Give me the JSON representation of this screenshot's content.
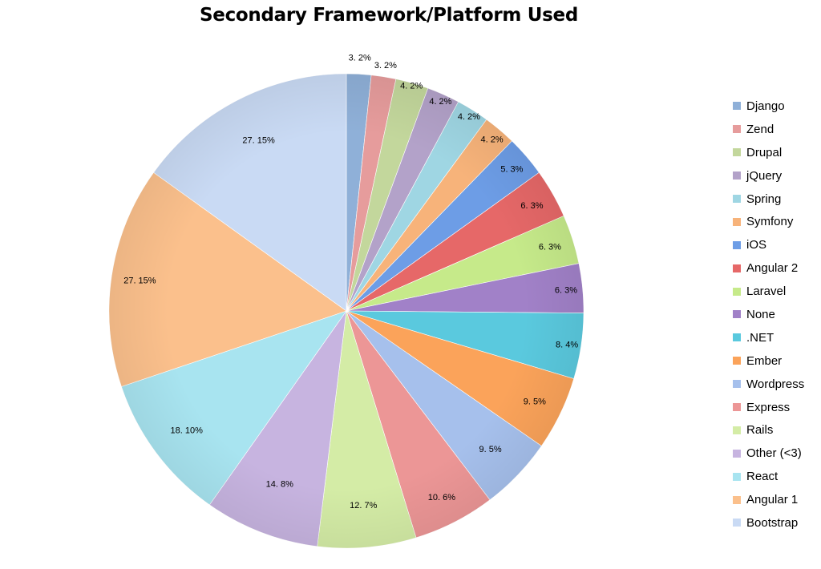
{
  "title": "Secondary Framework/Platform Used",
  "chart_data": {
    "type": "pie",
    "title": "Secondary Framework/Platform Used",
    "legend_position": "right",
    "slices": [
      {
        "name": "Django",
        "label": "3. 2%",
        "count": 3,
        "percent": 2,
        "color": "#8fb0d8"
      },
      {
        "name": "Zend",
        "label": "3. 2%",
        "count": 3,
        "percent": 2,
        "color": "#e69c9c"
      },
      {
        "name": "Drupal",
        "label": "4. 2%",
        "count": 4,
        "percent": 2,
        "color": "#c3d79c"
      },
      {
        "name": "jQuery",
        "label": "4. 2%",
        "count": 4,
        "percent": 2,
        "color": "#b3a2c9"
      },
      {
        "name": "Spring",
        "label": "4. 2%",
        "count": 4,
        "percent": 2,
        "color": "#9fd6e3"
      },
      {
        "name": "Symfony",
        "label": "4. 2%",
        "count": 4,
        "percent": 2,
        "color": "#f7b37a"
      },
      {
        "name": "iOS",
        "label": "5. 3%",
        "count": 5,
        "percent": 3,
        "color": "#6d9de6"
      },
      {
        "name": "Angular 2",
        "label": "6. 3%",
        "count": 6,
        "percent": 3,
        "color": "#e66868"
      },
      {
        "name": "Laravel",
        "label": "6. 3%",
        "count": 6,
        "percent": 3,
        "color": "#c6ea8a"
      },
      {
        "name": "None",
        "label": "6. 3%",
        "count": 6,
        "percent": 3,
        "color": "#a181c8"
      },
      {
        "name": ".NET",
        "label": "8. 4%",
        "count": 8,
        "percent": 4,
        "color": "#5ac9de"
      },
      {
        "name": "Ember",
        "label": "9. 5%",
        "count": 9,
        "percent": 5,
        "color": "#fba35a"
      },
      {
        "name": "Wordpress",
        "label": "9. 5%",
        "count": 9,
        "percent": 5,
        "color": "#a6c0ec"
      },
      {
        "name": "Express",
        "label": "10. 6%",
        "count": 10,
        "percent": 6,
        "color": "#ec9696"
      },
      {
        "name": "Rails",
        "label": "12. 7%",
        "count": 12,
        "percent": 7,
        "color": "#d4eca6"
      },
      {
        "name": "Other (<3)",
        "label": "14. 8%",
        "count": 14,
        "percent": 8,
        "color": "#c7b4e0"
      },
      {
        "name": "React",
        "label": "18. 10%",
        "count": 18,
        "percent": 10,
        "color": "#a8e4f0"
      },
      {
        "name": "Angular 1",
        "label": "27. 15%",
        "count": 27,
        "percent": 15,
        "color": "#fbc08c"
      },
      {
        "name": "Bootstrap",
        "label": "27. 15%",
        "count": 27,
        "percent": 15,
        "color": "#c9daf4"
      }
    ]
  }
}
